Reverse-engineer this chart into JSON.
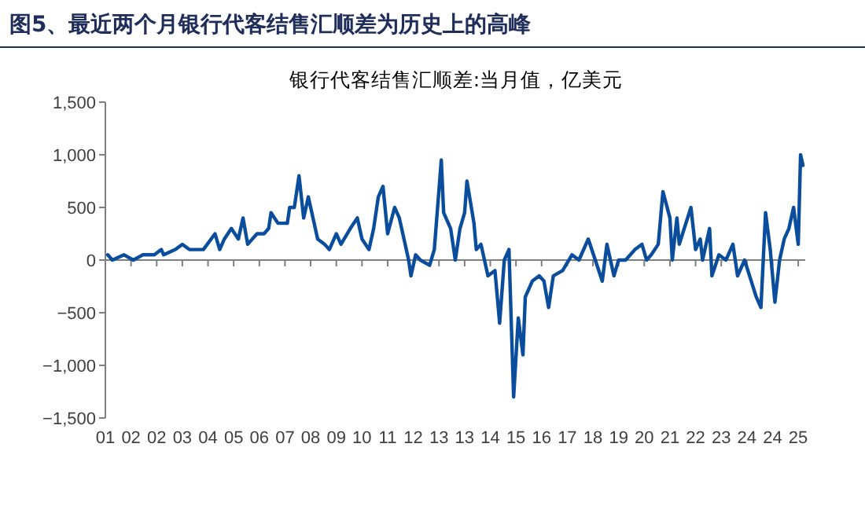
{
  "chart_data": {
    "type": "line",
    "title": "图5、最近两个月银行代客结售汇顺差为历史上的高峰",
    "subtitle": "银行代客结售汇顺差:当月值，亿美元",
    "series": [
      {
        "color": "#0a4d9c",
        "x": [
          "2001-03",
          "2001-05",
          "2001-10",
          "2002-02",
          "2002-06",
          "2002-11",
          "2003-02",
          "2003-03",
          "2003-08",
          "2003-11",
          "2004-02",
          "2004-06",
          "2004-08",
          "2005-01",
          "2005-03",
          "2005-05",
          "2005-08",
          "2005-11",
          "2006-01",
          "2006-03",
          "2006-07",
          "2006-10",
          "2006-12",
          "2007-01",
          "2007-04",
          "2007-08",
          "2007-09",
          "2007-11",
          "2008-01",
          "2008-03",
          "2008-05",
          "2008-07",
          "2008-09",
          "2008-12",
          "2009-02",
          "2009-05",
          "2009-07",
          "2009-11",
          "2010-02",
          "2010-04",
          "2010-07",
          "2010-09",
          "2010-11",
          "2011-01",
          "2011-03",
          "2011-06",
          "2011-08",
          "2011-12",
          "2012-01",
          "2012-03",
          "2012-05",
          "2012-09",
          "2012-11",
          "2013-02",
          "2013-03",
          "2013-06",
          "2013-08",
          "2013-10",
          "2013-12",
          "2014-01",
          "2014-04",
          "2014-05",
          "2014-07",
          "2014-10",
          "2015-01",
          "2015-03",
          "2015-05",
          "2015-07",
          "2015-09",
          "2015-11",
          "2016-01",
          "2016-02",
          "2016-05",
          "2016-08",
          "2016-10",
          "2016-12",
          "2017-02",
          "2017-06",
          "2017-10",
          "2018-01",
          "2018-05",
          "2018-08",
          "2018-11",
          "2019-01",
          "2019-04",
          "2019-06",
          "2019-09",
          "2020-01",
          "2020-04",
          "2020-06",
          "2020-08",
          "2020-11",
          "2021-01",
          "2021-04",
          "2021-05",
          "2021-07",
          "2021-08",
          "2022-01",
          "2022-03",
          "2022-05",
          "2022-06",
          "2022-09",
          "2022-10",
          "2023-01",
          "2023-04",
          "2023-07",
          "2023-09",
          "2023-12",
          "2024-05",
          "2024-07",
          "2024-09",
          "2024-11",
          "2025-01",
          "2025-03",
          "2025-05",
          "2025-07",
          "2025-09",
          "2025-11",
          "2025-12",
          "2026-01"
        ],
        "values": [
          50,
          0,
          50,
          0,
          50,
          50,
          100,
          50,
          100,
          150,
          100,
          100,
          100,
          250,
          100,
          200,
          300,
          200,
          400,
          150,
          250,
          250,
          300,
          450,
          350,
          350,
          500,
          500,
          800,
          400,
          600,
          400,
          200,
          150,
          100,
          250,
          150,
          300,
          400,
          200,
          100,
          300,
          600,
          700,
          250,
          500,
          400,
          0,
          -150,
          50,
          0,
          -50,
          100,
          950,
          450,
          300,
          0,
          300,
          450,
          750,
          350,
          100,
          150,
          -150,
          -100,
          -600,
          0,
          100,
          -1300,
          -550,
          -900,
          -350,
          -200,
          -150,
          -200,
          -450,
          -150,
          -100,
          50,
          0,
          200,
          0,
          -200,
          150,
          -150,
          0,
          0,
          100,
          150,
          0,
          50,
          150,
          650,
          400,
          0,
          400,
          150,
          500,
          100,
          200,
          0,
          300,
          -150,
          50,
          0,
          150,
          -150,
          0,
          -350,
          -450,
          450,
          100,
          -400,
          0,
          200,
          300,
          500,
          150,
          1000,
          900
        ]
      }
    ],
    "xlim": [
      "2001-02",
      "2026-02"
    ],
    "xticks": [
      {
        "value": "2001-02",
        "label": "01"
      },
      {
        "value": "2002-01",
        "label": "02"
      },
      {
        "value": "2002-12",
        "label": "02"
      },
      {
        "value": "2003-11",
        "label": "03"
      },
      {
        "value": "2004-10",
        "label": "04"
      },
      {
        "value": "2005-09",
        "label": "05"
      },
      {
        "value": "2006-08",
        "label": "06"
      },
      {
        "value": "2007-07",
        "label": "07"
      },
      {
        "value": "2008-06",
        "label": "08"
      },
      {
        "value": "2009-05",
        "label": "09"
      },
      {
        "value": "2010-04",
        "label": "10"
      },
      {
        "value": "2011-03",
        "label": "11"
      },
      {
        "value": "2012-02",
        "label": "12"
      },
      {
        "value": "2013-01",
        "label": "13"
      },
      {
        "value": "2013-12",
        "label": "13"
      },
      {
        "value": "2014-11",
        "label": "14"
      },
      {
        "value": "2015-10",
        "label": "15"
      },
      {
        "value": "2016-09",
        "label": "16"
      },
      {
        "value": "2017-08",
        "label": "17"
      },
      {
        "value": "2018-07",
        "label": "18"
      },
      {
        "value": "2019-06",
        "label": "19"
      },
      {
        "value": "2020-05",
        "label": "20"
      },
      {
        "value": "2021-04",
        "label": "21"
      },
      {
        "value": "2022-03",
        "label": "22"
      },
      {
        "value": "2023-02",
        "label": "23"
      },
      {
        "value": "2024-01",
        "label": "24"
      },
      {
        "value": "2024-12",
        "label": "24"
      },
      {
        "value": "2025-11",
        "label": "25"
      }
    ],
    "ylim": [
      -1500,
      1500
    ],
    "yticks": [
      {
        "value": -1500,
        "label": "−1,500"
      },
      {
        "value": -1000,
        "label": "−1,000"
      },
      {
        "value": -500,
        "label": "−500"
      },
      {
        "value": 0,
        "label": "0"
      },
      {
        "value": 500,
        "label": "500"
      },
      {
        "value": 1000,
        "label": "1,000"
      },
      {
        "value": 1500,
        "label": "1,500"
      }
    ],
    "marker": "none",
    "line_style": "solid"
  }
}
